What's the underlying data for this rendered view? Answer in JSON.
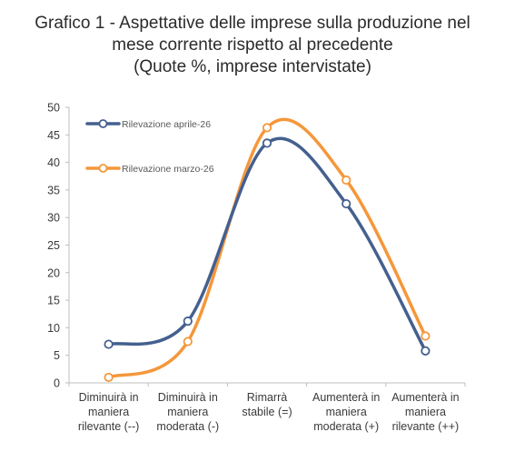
{
  "chart_data": {
    "type": "line",
    "title_lines": [
      "Grafico 1 - Aspettative delle imprese sulla produzione nel",
      "mese corrente rispetto al precedente",
      "(Quote %, imprese intervistate)"
    ],
    "categories": [
      [
        "Diminuirà in",
        "maniera",
        "rilevante (--)"
      ],
      [
        "Diminuirà in",
        "maniera",
        "moderata (-)"
      ],
      [
        "Rimarrà",
        "stabile (=)"
      ],
      [
        "Aumenterà in",
        "maniera",
        "moderata (+)"
      ],
      [
        "Aumenterà in",
        "maniera",
        "rilevante (++)"
      ]
    ],
    "series": [
      {
        "name": "Rilevazione aprile-26",
        "color": "#44608f",
        "values": [
          7,
          11.2,
          43.5,
          32.5,
          5.8
        ]
      },
      {
        "name": "Rilevazione marzo-26",
        "color": "#f5973a",
        "values": [
          1,
          7.5,
          46.3,
          36.8,
          8.5
        ]
      }
    ],
    "ylim": [
      0,
      50
    ],
    "yticks": [
      "0",
      "5",
      "10",
      "15",
      "20",
      "25",
      "30",
      "35",
      "40",
      "45",
      "50"
    ],
    "grid": false,
    "legend_position": "top-left",
    "xlabel": "",
    "ylabel": ""
  }
}
